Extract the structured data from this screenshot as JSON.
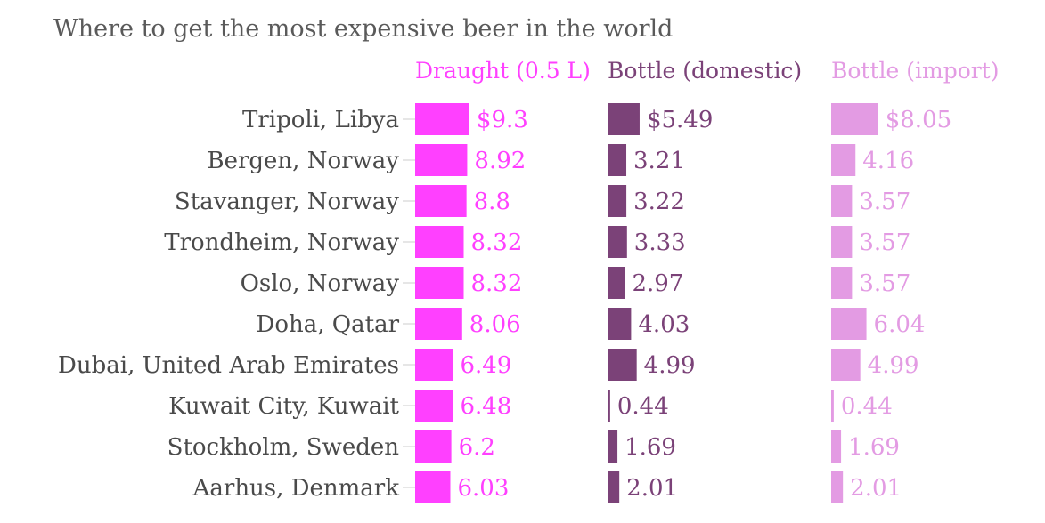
{
  "chart_data": {
    "type": "bar",
    "title": "Where to get the most expensive beer in the world",
    "categories": [
      "Tripoli, Libya",
      "Bergen, Norway",
      "Stavanger, Norway",
      "Trondheim, Norway",
      "Oslo, Norway",
      "Doha, Qatar",
      "Dubai, United Arab Emirates",
      "Kuwait City, Kuwait",
      "Stockholm, Sweden",
      "Aarhus, Denmark"
    ],
    "series": [
      {
        "name": "Draught (0.5 L)",
        "color": "#ff40ff",
        "values": [
          9.3,
          8.92,
          8.8,
          8.32,
          8.32,
          8.06,
          6.49,
          6.48,
          6.2,
          6.03
        ],
        "labels": [
          "$9.3",
          "8.92",
          "8.8",
          "8.32",
          "8.32",
          "8.06",
          "6.49",
          "6.48",
          "6.2",
          "6.03"
        ]
      },
      {
        "name": "Bottle (domestic)",
        "color": "#7b4278",
        "values": [
          5.49,
          3.21,
          3.22,
          3.33,
          2.97,
          4.03,
          4.99,
          0.44,
          1.69,
          2.01
        ],
        "labels": [
          "$5.49",
          "3.21",
          "3.22",
          "3.33",
          "2.97",
          "4.03",
          "4.99",
          "0.44",
          "1.69",
          "2.01"
        ]
      },
      {
        "name": "Bottle (import)",
        "color": "#e39be3",
        "values": [
          8.05,
          4.16,
          3.57,
          3.57,
          3.57,
          6.04,
          4.99,
          0.44,
          1.69,
          2.01
        ],
        "labels": [
          "$8.05",
          "4.16",
          "3.57",
          "3.57",
          "3.57",
          "6.04",
          "4.99",
          "0.44",
          "1.69",
          "2.01"
        ]
      }
    ],
    "category_label_color": "#4a4a4a",
    "title_color": "#5a5a5a",
    "axis_tick_color": "#cccccc"
  }
}
